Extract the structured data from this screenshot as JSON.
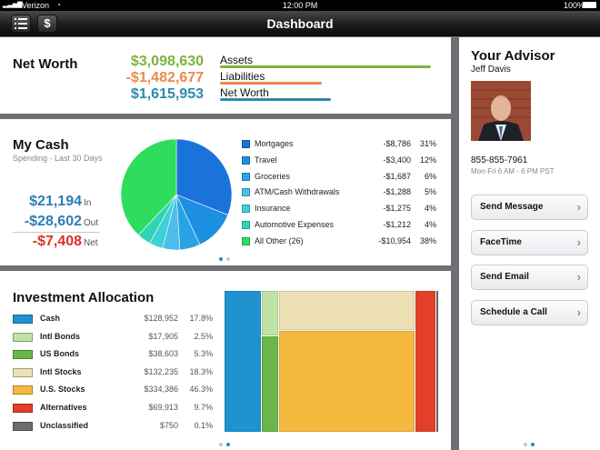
{
  "status": {
    "carrier": "Verizon",
    "time": "12:00 PM",
    "battery": "100%"
  },
  "nav": {
    "title": "Dashboard",
    "menu_icon": "list-icon",
    "money_glyph": "$"
  },
  "net_worth": {
    "title": "Net Worth",
    "rows": [
      {
        "value": "$3,098,630",
        "label": "Assets",
        "color": "#7cb53b"
      },
      {
        "value": "-$1,482,677",
        "label": "Liabilities",
        "color": "#e88b49"
      },
      {
        "value": "$1,615,953",
        "label": "Net Worth",
        "color": "#2a8ab0"
      }
    ]
  },
  "my_cash": {
    "title": "My Cash",
    "subtitle": "Spending - Last 30 Days",
    "in_value": "$21,194",
    "in_label": "In",
    "out_value": "-$28,602",
    "out_label": "Out",
    "net_value": "-$7,408",
    "net_label": "Net",
    "categories": [
      {
        "label": "Mortgages",
        "amount": "-$8,786",
        "pct": "31%",
        "share": 31,
        "color": "#1a73d9"
      },
      {
        "label": "Travel",
        "amount": "-$3,400",
        "pct": "12%",
        "share": 12,
        "color": "#1d8fe0"
      },
      {
        "label": "Groceries",
        "amount": "-$1,687",
        "pct": "6%",
        "share": 6,
        "color": "#2aa3e6"
      },
      {
        "label": "ATM/Cash Withdrawals",
        "amount": "-$1,288",
        "pct": "5%",
        "share": 5,
        "color": "#4dbdea"
      },
      {
        "label": "Insurance",
        "amount": "-$1,275",
        "pct": "4%",
        "share": 4,
        "color": "#3fcfd6"
      },
      {
        "label": "Automotive Expenses",
        "amount": "-$1,212",
        "pct": "4%",
        "share": 4,
        "color": "#2fd5b0"
      },
      {
        "label": "All Other (26)",
        "amount": "-$10,954",
        "pct": "38%",
        "share": 38,
        "color": "#2edc5e"
      }
    ]
  },
  "investment": {
    "title": "Investment Allocation",
    "rows": [
      {
        "label": "Cash",
        "amount": "$128,952",
        "pct": "17.8%",
        "share": 17.8,
        "color": "#1f93cf"
      },
      {
        "label": "Intl Bonds",
        "amount": "$17,905",
        "pct": "2.5%",
        "share": 2.5,
        "color": "#bfe3a6"
      },
      {
        "label": "US Bonds",
        "amount": "$38,603",
        "pct": "5.3%",
        "share": 5.3,
        "color": "#6ab64a"
      },
      {
        "label": "Intl Stocks",
        "amount": "$132,235",
        "pct": "18.3%",
        "share": 18.3,
        "color": "#ece0b4"
      },
      {
        "label": "U.S. Stocks",
        "amount": "$334,386",
        "pct": "46.3%",
        "share": 46.3,
        "color": "#f5b940"
      },
      {
        "label": "Alternatives",
        "amount": "$69,913",
        "pct": "9.7%",
        "share": 9.7,
        "color": "#e2402a"
      },
      {
        "label": "Unclassified",
        "amount": "$750",
        "pct": "0.1%",
        "share": 0.1,
        "color": "#6d6d6d"
      }
    ]
  },
  "advisor": {
    "title": "Your Advisor",
    "name": "Jeff Davis",
    "phone": "855-855-7961",
    "hours": "Mon-Fri 6 AM - 6 PM PST",
    "actions": [
      "Send Message",
      "FaceTime",
      "Send Email",
      "Schedule a Call"
    ]
  }
}
